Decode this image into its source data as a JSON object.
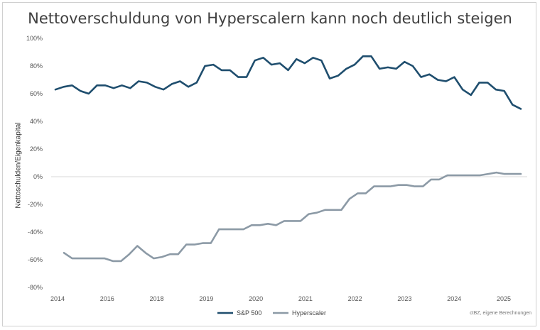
{
  "chart_data": {
    "type": "line",
    "title": "Nettoverschuldung von Hyperscalern kann noch deutlich steigen",
    "ylabel": "Nettoschulden/Eigenkapital",
    "xlabel": "",
    "source": "ctBZ, eigene Berechnungen",
    "ylim": [
      -80,
      100
    ],
    "y_ticks": [
      "100%",
      "80%",
      "60%",
      "40%",
      "20%",
      "0%",
      "-20%",
      "-40%",
      "-60%",
      "-80%"
    ],
    "x_ticks": [
      "2014",
      "2016",
      "2018",
      "2019",
      "2020",
      "2021",
      "2022",
      "2023",
      "2024",
      "2025"
    ],
    "legend_position": "bottom",
    "grid": false,
    "series": [
      {
        "name": "S&P 500",
        "color": "#1f4e6e",
        "points": [
          [
            "2014",
            63
          ],
          [
            "2014-Q2",
            65
          ],
          [
            "2014-Q3",
            66
          ],
          [
            "2015",
            62
          ],
          [
            "2015-Q2",
            60
          ],
          [
            "2015-Q3",
            66
          ],
          [
            "2015-Q4",
            66
          ],
          [
            "2016",
            64
          ],
          [
            "2016-Q2",
            66
          ],
          [
            "2016-Q3",
            64
          ],
          [
            "2016-Q4",
            69
          ],
          [
            "2017",
            68
          ],
          [
            "2017-Q2",
            65
          ],
          [
            "2017-Q3",
            63
          ],
          [
            "2017-Q4",
            67
          ],
          [
            "2018",
            69
          ],
          [
            "2018-Q2",
            65
          ],
          [
            "2018-Q3",
            68
          ],
          [
            "2018-Q4",
            80
          ],
          [
            "2019",
            81
          ],
          [
            "2019-Q2",
            77
          ],
          [
            "2019-Q3",
            77
          ],
          [
            "2019-Q4",
            72
          ],
          [
            "2020",
            72
          ],
          [
            "2020-Q2",
            84
          ],
          [
            "2020-Q3",
            86
          ],
          [
            "2020-Q4",
            81
          ],
          [
            "2021",
            82
          ],
          [
            "2021-Q2",
            77
          ],
          [
            "2021-Q3",
            85
          ],
          [
            "2021-Q4",
            82
          ],
          [
            "2021b",
            86
          ],
          [
            "2022",
            84
          ],
          [
            "2022-Q2",
            71
          ],
          [
            "2022-Q3",
            73
          ],
          [
            "2022-Q4",
            78
          ],
          [
            "2023",
            81
          ],
          [
            "2023-Q2",
            87
          ],
          [
            "2023-Q3",
            87
          ],
          [
            "2023-Q4",
            78
          ],
          [
            "2023b",
            79
          ],
          [
            "2023c",
            78
          ],
          [
            "2024",
            83
          ],
          [
            "2024-Q2",
            80
          ],
          [
            "2024-Q3",
            72
          ],
          [
            "2024-Q4",
            74
          ],
          [
            "2024b",
            70
          ],
          [
            "2024c",
            69
          ],
          [
            "2025",
            72
          ],
          [
            "2025-Q2",
            63
          ],
          [
            "2025-Q3",
            59
          ],
          [
            "2025-Q4",
            68
          ],
          [
            "2025b",
            68
          ],
          [
            "2025c",
            63
          ],
          [
            "2025d",
            62
          ],
          [
            "2025e",
            52
          ],
          [
            "2025f",
            49
          ]
        ]
      },
      {
        "name": "Hyperscaler",
        "color": "#8c9aa6",
        "points": [
          [
            "2014-Q2",
            -55
          ],
          [
            "2014-Q3",
            -59
          ],
          [
            "2015",
            -59
          ],
          [
            "2015-Q2",
            -59
          ],
          [
            "2015-Q3",
            -59
          ],
          [
            "2015-Q4",
            -59
          ],
          [
            "2016",
            -61
          ],
          [
            "2016-Q2",
            -61
          ],
          [
            "2016-Q3",
            -56
          ],
          [
            "2016-Q4",
            -50
          ],
          [
            "2017",
            -55
          ],
          [
            "2017-Q2",
            -59
          ],
          [
            "2017-Q3",
            -58
          ],
          [
            "2017-Q4",
            -56
          ],
          [
            "2018",
            -56
          ],
          [
            "2018-Q2",
            -49
          ],
          [
            "2018-Q3",
            -49
          ],
          [
            "2018-Q4",
            -48
          ],
          [
            "2019",
            -48
          ],
          [
            "2019-Q2",
            -38
          ],
          [
            "2019-Q3",
            -38
          ],
          [
            "2019-Q4",
            -38
          ],
          [
            "2020",
            -38
          ],
          [
            "2020-Q2",
            -35
          ],
          [
            "2020-Q3",
            -35
          ],
          [
            "2020-Q4",
            -34
          ],
          [
            "2021",
            -35
          ],
          [
            "2021-Q2",
            -32
          ],
          [
            "2021-Q3",
            -32
          ],
          [
            "2021-Q4",
            -32
          ],
          [
            "2021b",
            -27
          ],
          [
            "2022",
            -26
          ],
          [
            "2022-Q2",
            -24
          ],
          [
            "2022-Q3",
            -24
          ],
          [
            "2022-Q4",
            -24
          ],
          [
            "2023",
            -16
          ],
          [
            "2023-Q2",
            -12
          ],
          [
            "2023-Q3",
            -12
          ],
          [
            "2023-Q4",
            -7
          ],
          [
            "2023b",
            -7
          ],
          [
            "2023c",
            -7
          ],
          [
            "2024",
            -6
          ],
          [
            "2024-Q2",
            -6
          ],
          [
            "2024-Q3",
            -7
          ],
          [
            "2024-Q4",
            -7
          ],
          [
            "2024b",
            -2
          ],
          [
            "2024c",
            -2
          ],
          [
            "2025",
            1
          ],
          [
            "2025-Q2",
            1
          ],
          [
            "2025-Q3",
            1
          ],
          [
            "2025-Q4",
            1
          ],
          [
            "2025b",
            1
          ],
          [
            "2025c",
            2
          ],
          [
            "2025d",
            3
          ],
          [
            "2025e",
            2
          ],
          [
            "2025f",
            2
          ],
          [
            "2025g",
            2
          ]
        ]
      }
    ]
  }
}
